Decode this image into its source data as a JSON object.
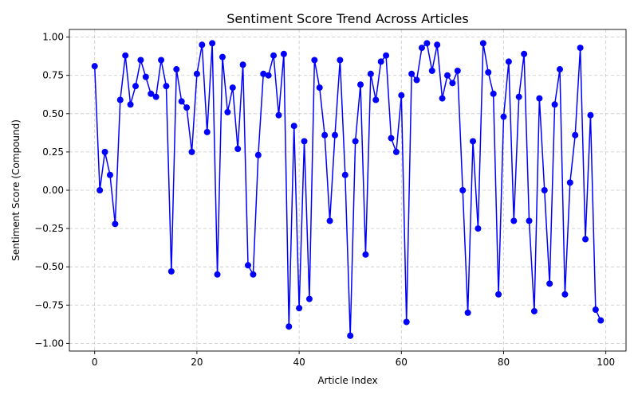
{
  "chart_data": {
    "type": "line",
    "title": "Sentiment Score Trend Across Articles",
    "xlabel": "Article Index",
    "ylabel": "Sentiment Score (Compound)",
    "xlim": [
      -4.95,
      103.95
    ],
    "ylim": [
      -1.05,
      1.05
    ],
    "xticks": [
      0,
      20,
      40,
      60,
      80,
      100
    ],
    "yticks": [
      -1.0,
      -0.75,
      -0.5,
      -0.25,
      0.0,
      0.25,
      0.5,
      0.75,
      1.0
    ],
    "xtick_labels": [
      "0",
      "20",
      "40",
      "60",
      "80",
      "100"
    ],
    "ytick_labels": [
      "−1.00",
      "−0.75",
      "−0.50",
      "−0.25",
      "0.00",
      "0.25",
      "0.50",
      "0.75",
      "1.00"
    ],
    "grid": true,
    "series": [
      {
        "color": "#0000ff",
        "marker": "circle",
        "x": [
          0,
          1,
          2,
          3,
          4,
          5,
          6,
          7,
          8,
          9,
          10,
          11,
          12,
          13,
          14,
          15,
          16,
          17,
          18,
          19,
          20,
          21,
          22,
          23,
          24,
          25,
          26,
          27,
          28,
          29,
          30,
          31,
          32,
          33,
          34,
          35,
          36,
          37,
          38,
          39,
          40,
          41,
          42,
          43,
          44,
          45,
          46,
          47,
          48,
          49,
          50,
          51,
          52,
          53,
          54,
          55,
          56,
          57,
          58,
          59,
          60,
          61,
          62,
          63,
          64,
          65,
          66,
          67,
          68,
          69,
          70,
          71,
          72,
          73,
          74,
          75,
          76,
          77,
          78,
          79,
          80,
          81,
          82,
          83,
          84,
          85,
          86,
          87,
          88,
          89,
          90,
          91,
          92,
          93,
          94,
          95,
          96,
          97,
          98,
          99
        ],
        "y": [
          0.81,
          0.0,
          0.25,
          0.1,
          -0.22,
          0.59,
          0.88,
          0.56,
          0.68,
          0.85,
          0.74,
          0.63,
          0.61,
          0.85,
          0.68,
          -0.53,
          0.79,
          0.58,
          0.54,
          0.25,
          0.76,
          0.95,
          0.38,
          0.96,
          -0.55,
          0.87,
          0.51,
          0.67,
          0.27,
          0.82,
          -0.49,
          -0.55,
          0.23,
          0.76,
          0.75,
          0.88,
          0.49,
          0.89,
          -0.89,
          0.42,
          -0.77,
          0.32,
          -0.71,
          0.85,
          0.67,
          0.36,
          -0.2,
          0.36,
          0.85,
          0.1,
          -0.95,
          0.32,
          0.69,
          -0.42,
          0.76,
          0.59,
          0.84,
          0.88,
          0.34,
          0.25,
          0.62,
          -0.86,
          0.76,
          0.72,
          0.93,
          0.96,
          0.78,
          0.95,
          0.6,
          0.75,
          0.7,
          0.78,
          0.0,
          -0.8,
          0.32,
          -0.25,
          0.96,
          0.77,
          0.63,
          -0.68,
          0.48,
          0.84,
          -0.2,
          0.61,
          0.89,
          -0.2,
          -0.79,
          0.6,
          0.0,
          -0.61,
          0.56,
          0.79,
          -0.68,
          0.05,
          0.36,
          0.93,
          -0.32,
          0.49,
          -0.78,
          -0.85
        ]
      }
    ]
  }
}
